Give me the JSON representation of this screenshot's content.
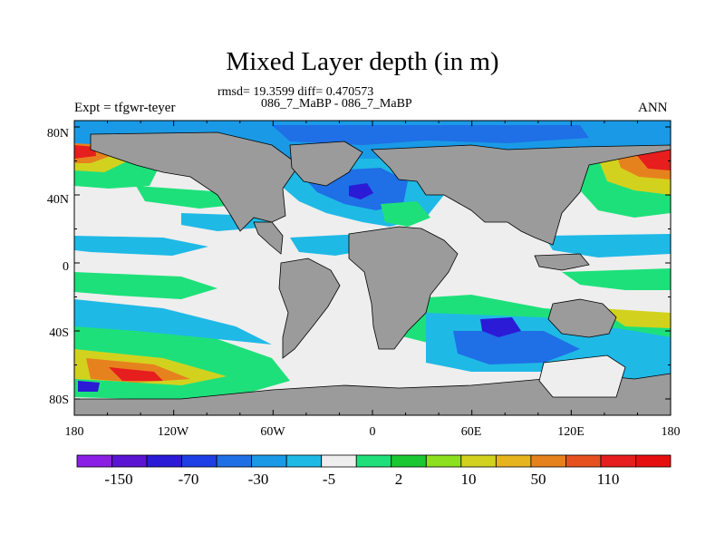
{
  "title": "Mixed Layer depth (in m)",
  "stats_line1": "rmsd= 19.3599 diff= 0.470573",
  "stats_line2": "086_7_MaBP - 086_7_MaBP",
  "expt_label": "Expt = tfgwr-teyer",
  "period_label": "ANN",
  "lat_labels": [
    "80N",
    "40N",
    "0",
    "40S",
    "80S"
  ],
  "lon_labels": [
    "180",
    "120W",
    "60W",
    "0",
    "60E",
    "120E",
    "180"
  ],
  "colorbar": {
    "colors": [
      "#8c1fe6",
      "#5a14d2",
      "#2b1ad6",
      "#1f3fe6",
      "#1f6fe6",
      "#1a9ae6",
      "#1fb9e6",
      "#eeeeee",
      "#1ee07a",
      "#19c832",
      "#8ce01e",
      "#d2d21e",
      "#e6b41e",
      "#e6821e",
      "#e6501e",
      "#e61e1e",
      "#e60f0f"
    ],
    "labels": [
      "-150",
      "-70",
      "-30",
      "-5",
      "2",
      "10",
      "50",
      "110"
    ]
  },
  "colors": {
    "land": "#9b9b9b",
    "neutral": "#eeeeee"
  }
}
